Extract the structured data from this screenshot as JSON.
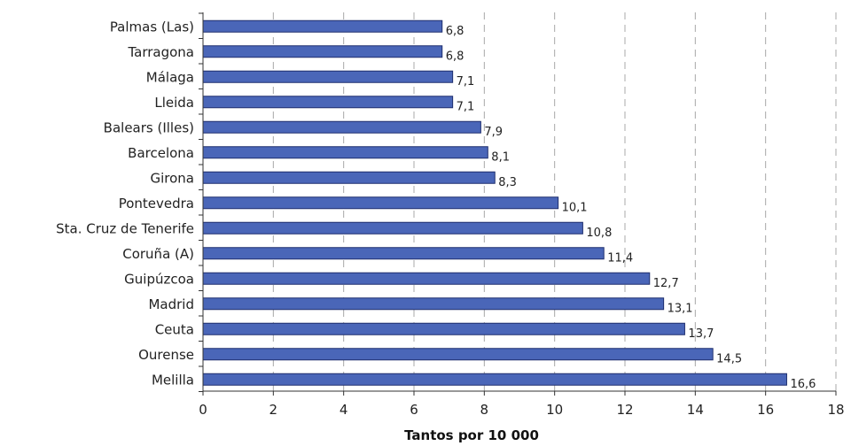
{
  "chart_data": {
    "type": "bar",
    "orientation": "horizontal",
    "categories": [
      "Palmas (Las)",
      "Tarragona",
      "Málaga",
      "Lleida",
      "Balears (Illes)",
      "Barcelona",
      "Girona",
      "Pontevedra",
      "Sta. Cruz de Tenerife",
      "Coruña (A)",
      "Guipúzcoa",
      "Madrid",
      "Ceuta",
      "Ourense",
      "Melilla"
    ],
    "values": [
      6.8,
      6.8,
      7.1,
      7.1,
      7.9,
      8.1,
      8.3,
      10.1,
      10.8,
      11.4,
      12.7,
      13.1,
      13.7,
      14.5,
      16.6
    ],
    "value_labels": [
      "6,8",
      "6,8",
      "7,1",
      "7,1",
      "7,9",
      "8,1",
      "8,3",
      "10,1",
      "10,8",
      "11,4",
      "12,7",
      "13,1",
      "13,7",
      "14,5",
      "16,6"
    ],
    "xlim": [
      0,
      18
    ],
    "xticks": [
      0,
      2,
      4,
      6,
      8,
      10,
      12,
      14,
      16,
      18
    ],
    "xtick_labels": [
      "0",
      "2",
      "4",
      "6",
      "8",
      "10",
      "12",
      "14",
      "16",
      "18"
    ],
    "xlabel": "Tantos por 10 000",
    "ylabel": "",
    "title": "",
    "grid": "vertical dashed",
    "legend": "none",
    "colors": {
      "bar_fill": "#4a66b8",
      "bar_stroke": "#1f2f6e",
      "grid": "#a8a8a8",
      "axis": "#333333"
    }
  }
}
